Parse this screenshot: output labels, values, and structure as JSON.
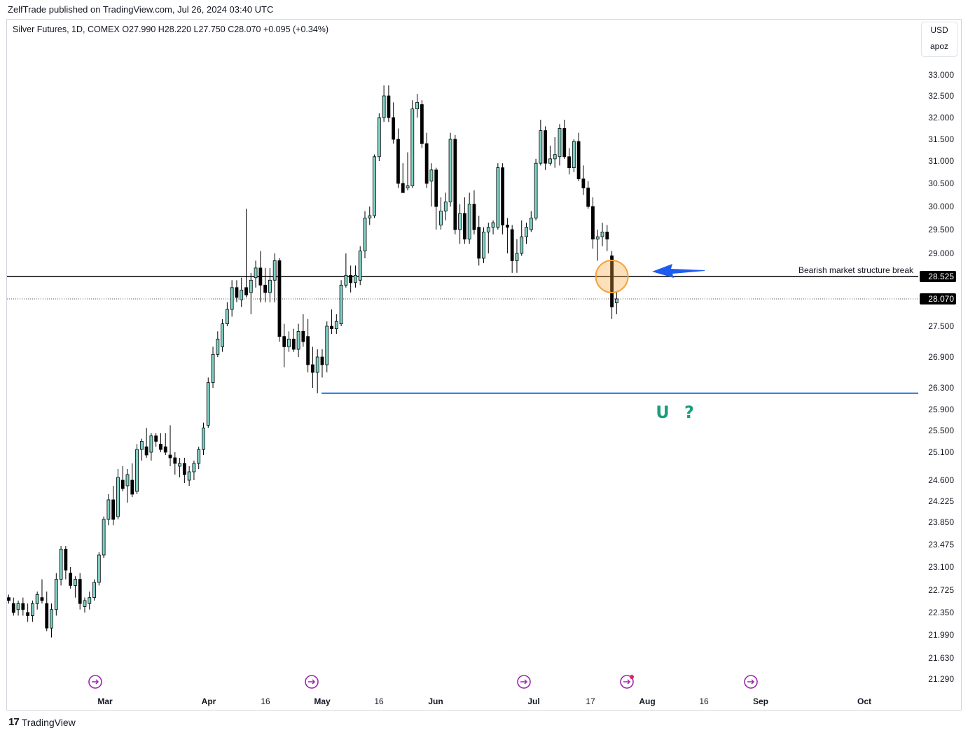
{
  "header": {
    "published": "ZelfTrade published on TradingView.com, Jul 26, 2024 03:40 UTC"
  },
  "legend": {
    "symbol": "Silver Futures, 1D, COMEX",
    "open": "O27.990",
    "high": "H28.220",
    "low": "L27.750",
    "close": "C28.070",
    "change": "+0.095 (+0.34%)"
  },
  "currency_box": {
    "currency": "USD",
    "unit": "apoz"
  },
  "footer": {
    "brand": "TradingView"
  },
  "colors": {
    "up": "#7fd1c6",
    "down": "#000000",
    "blue_arrow": "#1e5cf0",
    "support_line": "#1e6fe0",
    "highlight": "#f7a23b"
  },
  "chart_data": {
    "type": "candlestick",
    "x_labels": [
      "Mar",
      "Apr",
      "16",
      "May",
      "16",
      "Jun",
      "Jul",
      "17",
      "Aug",
      "16",
      "Sep",
      "Oct"
    ],
    "y_ticks": [
      "33.000",
      "32.500",
      "32.000",
      "31.500",
      "31.000",
      "30.500",
      "30.000",
      "29.500",
      "29.000",
      "27.500",
      "26.900",
      "26.300",
      "25.900",
      "25.500",
      "25.100",
      "24.600",
      "24.225",
      "23.850",
      "23.475",
      "23.100",
      "22.725",
      "22.350",
      "21.990",
      "21.630",
      "21.290"
    ],
    "price_labels": [
      {
        "value": "28.525",
        "kind": "level"
      },
      {
        "value": "28.070",
        "kind": "last"
      }
    ],
    "annotations": {
      "structure_level": 28.525,
      "structure_label": "Bearish market structure break",
      "support_level": 26.2,
      "symbols": [
        "U",
        "?"
      ]
    },
    "candles": [
      {
        "o": 22.6,
        "h": 22.65,
        "l": 22.5,
        "c": 22.55
      },
      {
        "o": 22.5,
        "h": 22.6,
        "l": 22.3,
        "c": 22.35
      },
      {
        "o": 22.4,
        "h": 22.55,
        "l": 22.3,
        "c": 22.5
      },
      {
        "o": 22.5,
        "h": 22.6,
        "l": 22.3,
        "c": 22.4
      },
      {
        "o": 22.35,
        "h": 22.5,
        "l": 22.2,
        "c": 22.3
      },
      {
        "o": 22.3,
        "h": 22.55,
        "l": 22.2,
        "c": 22.5
      },
      {
        "o": 22.5,
        "h": 22.7,
        "l": 22.4,
        "c": 22.65
      },
      {
        "o": 22.6,
        "h": 22.9,
        "l": 22.5,
        "c": 22.55
      },
      {
        "o": 22.5,
        "h": 22.7,
        "l": 22.05,
        "c": 22.1
      },
      {
        "o": 22.1,
        "h": 22.5,
        "l": 21.95,
        "c": 22.4
      },
      {
        "o": 22.4,
        "h": 23.0,
        "l": 22.3,
        "c": 22.9
      },
      {
        "o": 22.9,
        "h": 23.45,
        "l": 22.8,
        "c": 23.4
      },
      {
        "o": 23.4,
        "h": 23.45,
        "l": 22.9,
        "c": 23.05
      },
      {
        "o": 23.0,
        "h": 23.1,
        "l": 22.75,
        "c": 22.8
      },
      {
        "o": 22.8,
        "h": 22.95,
        "l": 22.6,
        "c": 22.9
      },
      {
        "o": 22.9,
        "h": 23.0,
        "l": 22.4,
        "c": 22.5
      },
      {
        "o": 22.45,
        "h": 22.6,
        "l": 22.35,
        "c": 22.55
      },
      {
        "o": 22.5,
        "h": 22.7,
        "l": 22.4,
        "c": 22.6
      },
      {
        "o": 22.6,
        "h": 22.9,
        "l": 22.55,
        "c": 22.85
      },
      {
        "o": 22.85,
        "h": 23.35,
        "l": 22.8,
        "c": 23.3
      },
      {
        "o": 23.3,
        "h": 23.95,
        "l": 23.25,
        "c": 23.9
      },
      {
        "o": 23.9,
        "h": 24.35,
        "l": 23.8,
        "c": 24.25
      },
      {
        "o": 24.25,
        "h": 24.5,
        "l": 23.8,
        "c": 23.9
      },
      {
        "o": 23.95,
        "h": 24.8,
        "l": 23.9,
        "c": 24.65
      },
      {
        "o": 24.6,
        "h": 24.85,
        "l": 24.4,
        "c": 24.45
      },
      {
        "o": 24.5,
        "h": 24.8,
        "l": 24.2,
        "c": 24.7
      },
      {
        "o": 24.6,
        "h": 24.9,
        "l": 24.3,
        "c": 24.35
      },
      {
        "o": 24.4,
        "h": 25.25,
        "l": 24.35,
        "c": 25.15
      },
      {
        "o": 25.15,
        "h": 25.35,
        "l": 24.95,
        "c": 25.3
      },
      {
        "o": 25.2,
        "h": 25.55,
        "l": 25.0,
        "c": 25.05
      },
      {
        "o": 25.1,
        "h": 25.45,
        "l": 24.95,
        "c": 25.4
      },
      {
        "o": 25.4,
        "h": 25.45,
        "l": 25.2,
        "c": 25.3
      },
      {
        "o": 25.25,
        "h": 25.45,
        "l": 25.1,
        "c": 25.15
      },
      {
        "o": 25.2,
        "h": 25.45,
        "l": 25.05,
        "c": 25.1
      },
      {
        "o": 25.05,
        "h": 25.6,
        "l": 24.85,
        "c": 25.0
      },
      {
        "o": 25.0,
        "h": 25.1,
        "l": 24.7,
        "c": 24.9
      },
      {
        "o": 24.85,
        "h": 25.0,
        "l": 24.65,
        "c": 24.9
      },
      {
        "o": 24.9,
        "h": 25.0,
        "l": 24.55,
        "c": 24.7
      },
      {
        "o": 24.6,
        "h": 24.85,
        "l": 24.5,
        "c": 24.75
      },
      {
        "o": 24.75,
        "h": 24.95,
        "l": 24.6,
        "c": 24.9
      },
      {
        "o": 24.9,
        "h": 25.2,
        "l": 24.8,
        "c": 25.15
      },
      {
        "o": 25.15,
        "h": 25.65,
        "l": 25.05,
        "c": 25.55
      },
      {
        "o": 25.6,
        "h": 26.5,
        "l": 25.55,
        "c": 26.4
      },
      {
        "o": 26.4,
        "h": 27.1,
        "l": 26.3,
        "c": 26.95
      },
      {
        "o": 26.95,
        "h": 27.4,
        "l": 26.9,
        "c": 27.25
      },
      {
        "o": 27.1,
        "h": 27.65,
        "l": 27.0,
        "c": 27.55
      },
      {
        "o": 27.55,
        "h": 28.0,
        "l": 27.5,
        "c": 27.85
      },
      {
        "o": 27.85,
        "h": 28.45,
        "l": 27.7,
        "c": 28.3
      },
      {
        "o": 28.3,
        "h": 28.45,
        "l": 28.0,
        "c": 28.1
      },
      {
        "o": 28.05,
        "h": 28.5,
        "l": 27.9,
        "c": 28.25
      },
      {
        "o": 28.3,
        "h": 29.95,
        "l": 28.1,
        "c": 28.15
      },
      {
        "o": 28.2,
        "h": 28.6,
        "l": 27.75,
        "c": 28.45
      },
      {
        "o": 28.5,
        "h": 28.85,
        "l": 28.3,
        "c": 28.7
      },
      {
        "o": 28.7,
        "h": 29.05,
        "l": 28.0,
        "c": 28.35
      },
      {
        "o": 28.35,
        "h": 28.7,
        "l": 28.0,
        "c": 28.2
      },
      {
        "o": 28.2,
        "h": 28.7,
        "l": 28.0,
        "c": 28.45
      },
      {
        "o": 28.45,
        "h": 29.0,
        "l": 28.0,
        "c": 28.85
      },
      {
        "o": 28.85,
        "h": 28.9,
        "l": 27.2,
        "c": 27.3
      },
      {
        "o": 27.3,
        "h": 27.55,
        "l": 26.7,
        "c": 27.1
      },
      {
        "o": 27.1,
        "h": 27.4,
        "l": 27.0,
        "c": 27.25
      },
      {
        "o": 27.25,
        "h": 27.45,
        "l": 27.0,
        "c": 27.05
      },
      {
        "o": 27.05,
        "h": 27.55,
        "l": 26.9,
        "c": 27.4
      },
      {
        "o": 27.4,
        "h": 27.75,
        "l": 27.1,
        "c": 27.2
      },
      {
        "o": 27.3,
        "h": 27.65,
        "l": 26.6,
        "c": 26.75
      },
      {
        "o": 26.75,
        "h": 27.1,
        "l": 26.3,
        "c": 26.6
      },
      {
        "o": 26.6,
        "h": 27.05,
        "l": 26.2,
        "c": 26.9
      },
      {
        "o": 26.9,
        "h": 27.05,
        "l": 26.5,
        "c": 26.75
      },
      {
        "o": 26.75,
        "h": 27.6,
        "l": 26.6,
        "c": 27.5
      },
      {
        "o": 27.5,
        "h": 27.85,
        "l": 27.35,
        "c": 27.45
      },
      {
        "o": 27.45,
        "h": 27.75,
        "l": 27.35,
        "c": 27.6
      },
      {
        "o": 27.55,
        "h": 28.45,
        "l": 27.5,
        "c": 28.35
      },
      {
        "o": 28.35,
        "h": 29.0,
        "l": 28.3,
        "c": 28.55
      },
      {
        "o": 28.55,
        "h": 28.75,
        "l": 28.2,
        "c": 28.4
      },
      {
        "o": 28.4,
        "h": 28.75,
        "l": 28.3,
        "c": 28.55
      },
      {
        "o": 28.45,
        "h": 29.15,
        "l": 28.35,
        "c": 29.05
      },
      {
        "o": 29.05,
        "h": 29.9,
        "l": 28.9,
        "c": 29.75
      },
      {
        "o": 29.75,
        "h": 30.0,
        "l": 29.6,
        "c": 29.8
      },
      {
        "o": 29.8,
        "h": 31.15,
        "l": 29.75,
        "c": 31.1
      },
      {
        "o": 31.1,
        "h": 32.1,
        "l": 31.0,
        "c": 32.0
      },
      {
        "o": 32.0,
        "h": 32.75,
        "l": 31.9,
        "c": 32.5
      },
      {
        "o": 32.5,
        "h": 32.75,
        "l": 31.9,
        "c": 32.0
      },
      {
        "o": 32.0,
        "h": 32.35,
        "l": 31.4,
        "c": 31.5
      },
      {
        "o": 31.5,
        "h": 31.75,
        "l": 30.4,
        "c": 30.5
      },
      {
        "o": 30.5,
        "h": 30.95,
        "l": 30.35,
        "c": 30.3
      },
      {
        "o": 30.4,
        "h": 31.2,
        "l": 30.35,
        "c": 30.45
      },
      {
        "o": 30.45,
        "h": 32.4,
        "l": 30.4,
        "c": 32.2
      },
      {
        "o": 32.2,
        "h": 32.55,
        "l": 32.0,
        "c": 32.35
      },
      {
        "o": 32.3,
        "h": 32.4,
        "l": 31.3,
        "c": 31.4
      },
      {
        "o": 31.4,
        "h": 31.65,
        "l": 30.4,
        "c": 30.5
      },
      {
        "o": 30.55,
        "h": 30.95,
        "l": 30.0,
        "c": 30.8
      },
      {
        "o": 30.8,
        "h": 30.85,
        "l": 29.5,
        "c": 30.0
      },
      {
        "o": 29.6,
        "h": 30.2,
        "l": 29.5,
        "c": 29.9
      },
      {
        "o": 29.9,
        "h": 30.3,
        "l": 29.7,
        "c": 30.1
      },
      {
        "o": 30.1,
        "h": 31.65,
        "l": 30.0,
        "c": 31.5
      },
      {
        "o": 31.5,
        "h": 31.6,
        "l": 29.4,
        "c": 29.5
      },
      {
        "o": 29.5,
        "h": 30.05,
        "l": 29.2,
        "c": 29.85
      },
      {
        "o": 29.85,
        "h": 30.2,
        "l": 29.2,
        "c": 29.3
      },
      {
        "o": 29.3,
        "h": 30.3,
        "l": 29.2,
        "c": 30.05
      },
      {
        "o": 30.05,
        "h": 30.35,
        "l": 29.4,
        "c": 29.5
      },
      {
        "o": 29.55,
        "h": 29.8,
        "l": 28.75,
        "c": 28.9
      },
      {
        "o": 28.9,
        "h": 29.55,
        "l": 28.8,
        "c": 29.45
      },
      {
        "o": 29.45,
        "h": 29.65,
        "l": 29.0,
        "c": 29.55
      },
      {
        "o": 29.55,
        "h": 29.7,
        "l": 29.4,
        "c": 29.65
      },
      {
        "o": 29.55,
        "h": 30.95,
        "l": 29.5,
        "c": 30.85
      },
      {
        "o": 30.85,
        "h": 30.95,
        "l": 29.4,
        "c": 29.6
      },
      {
        "o": 29.6,
        "h": 29.75,
        "l": 29.0,
        "c": 29.55
      },
      {
        "o": 29.5,
        "h": 29.6,
        "l": 28.6,
        "c": 28.85
      },
      {
        "o": 28.85,
        "h": 29.3,
        "l": 28.6,
        "c": 29.0
      },
      {
        "o": 29.0,
        "h": 29.7,
        "l": 28.95,
        "c": 29.35
      },
      {
        "o": 29.35,
        "h": 29.65,
        "l": 29.2,
        "c": 29.55
      },
      {
        "o": 29.5,
        "h": 29.9,
        "l": 29.45,
        "c": 29.75
      },
      {
        "o": 29.75,
        "h": 31.05,
        "l": 29.7,
        "c": 30.95
      },
      {
        "o": 30.95,
        "h": 31.95,
        "l": 30.9,
        "c": 31.7
      },
      {
        "o": 31.7,
        "h": 31.8,
        "l": 30.8,
        "c": 30.95
      },
      {
        "o": 30.95,
        "h": 31.35,
        "l": 30.9,
        "c": 31.05
      },
      {
        "o": 31.05,
        "h": 31.55,
        "l": 30.85,
        "c": 31.15
      },
      {
        "o": 31.1,
        "h": 31.85,
        "l": 30.9,
        "c": 31.75
      },
      {
        "o": 31.75,
        "h": 31.95,
        "l": 31.05,
        "c": 31.1
      },
      {
        "o": 31.1,
        "h": 31.3,
        "l": 30.7,
        "c": 30.85
      },
      {
        "o": 30.85,
        "h": 31.5,
        "l": 30.75,
        "c": 31.45
      },
      {
        "o": 31.45,
        "h": 31.65,
        "l": 30.55,
        "c": 30.6
      },
      {
        "o": 30.6,
        "h": 30.9,
        "l": 30.25,
        "c": 30.4
      },
      {
        "o": 30.4,
        "h": 30.55,
        "l": 29.95,
        "c": 30.0
      },
      {
        "o": 30.0,
        "h": 30.2,
        "l": 29.1,
        "c": 29.3
      },
      {
        "o": 29.3,
        "h": 29.5,
        "l": 28.85,
        "c": 29.35
      },
      {
        "o": 29.35,
        "h": 29.65,
        "l": 29.15,
        "c": 29.45
      },
      {
        "o": 29.45,
        "h": 29.6,
        "l": 29.05,
        "c": 29.3
      },
      {
        "o": 28.95,
        "h": 29.05,
        "l": 27.65,
        "c": 27.9
      },
      {
        "o": 27.99,
        "h": 28.22,
        "l": 27.75,
        "c": 28.07
      }
    ]
  }
}
